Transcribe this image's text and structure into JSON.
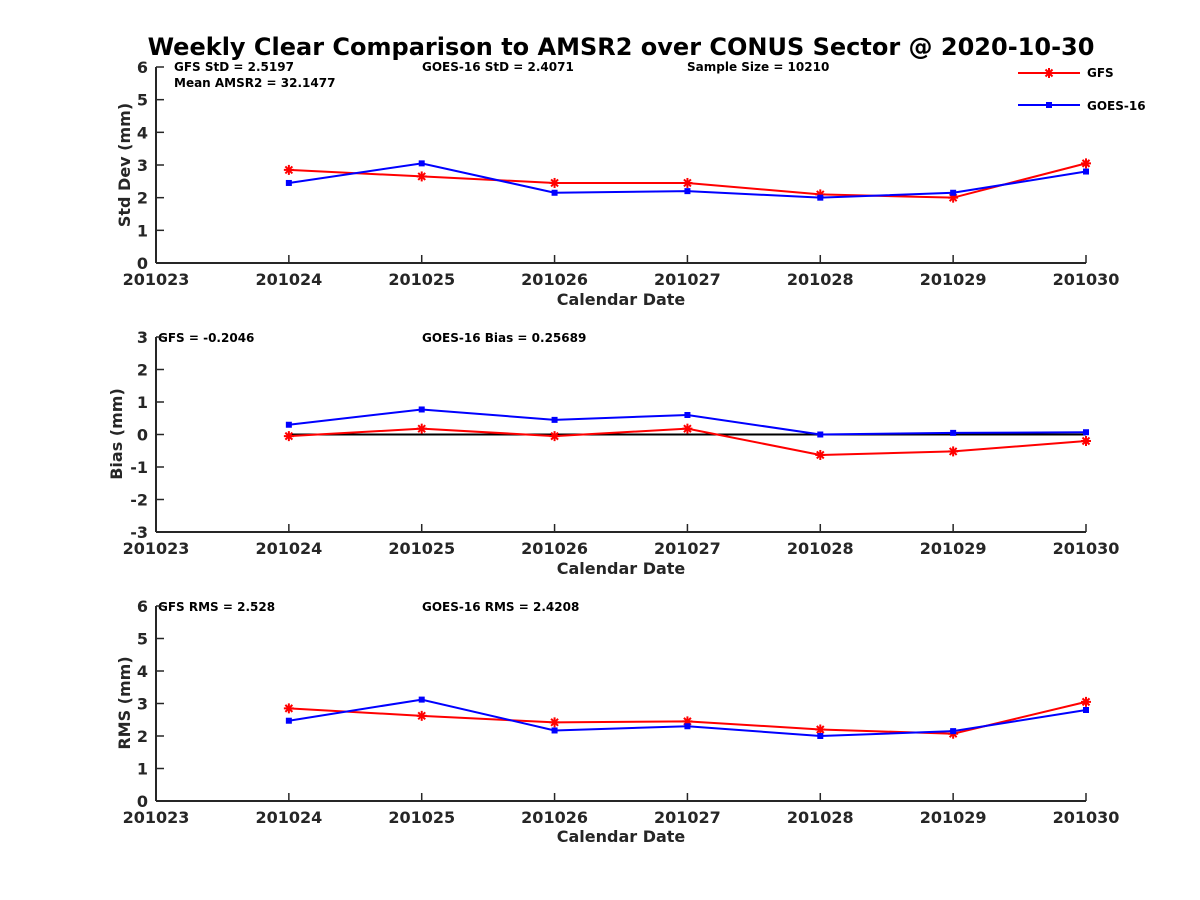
{
  "figure": {
    "title": "Weekly Clear Comparison to AMSR2 over CONUS Sector @ 2020-10-30"
  },
  "legend": {
    "position": "top-right",
    "items": [
      {
        "name": "GFS",
        "color": "#ff0000",
        "marker": "asterisk"
      },
      {
        "name": "GOES-16",
        "color": "#0000ff",
        "marker": "square"
      }
    ]
  },
  "chart_data": [
    {
      "type": "line",
      "id": "std",
      "title": "",
      "xlabel": "Calendar Date",
      "ylabel": "Std Dev (mm)",
      "categories": [
        "201023",
        "201024",
        "201025",
        "201026",
        "201027",
        "201028",
        "201029",
        "201030"
      ],
      "ylim": [
        0,
        6
      ],
      "yticks": [
        "0",
        "1",
        "2",
        "3",
        "4",
        "5",
        "6"
      ],
      "grid": false,
      "series": [
        {
          "name": "GFS",
          "color": "#ff0000",
          "marker": "asterisk",
          "values": [
            null,
            2.85,
            2.65,
            2.45,
            2.45,
            2.1,
            2.0,
            3.05
          ]
        },
        {
          "name": "GOES-16",
          "color": "#0000ff",
          "marker": "square",
          "values": [
            null,
            2.45,
            3.05,
            2.15,
            2.2,
            2.0,
            2.15,
            2.8
          ]
        }
      ],
      "annotations": [
        "GFS StD = 2.5197",
        "Mean AMSR2 = 32.1477",
        "GOES-16 StD = 2.4071",
        "Sample Size = 10210"
      ]
    },
    {
      "type": "line",
      "id": "bias",
      "title": "",
      "xlabel": "Calendar Date",
      "ylabel": "Bias (mm)",
      "categories": [
        "201023",
        "201024",
        "201025",
        "201026",
        "201027",
        "201028",
        "201029",
        "201030"
      ],
      "ylim": [
        -3,
        3
      ],
      "yticks": [
        "-3",
        "-2",
        "-1",
        "0",
        "1",
        "2",
        "3"
      ],
      "grid": false,
      "zero_line": true,
      "series": [
        {
          "name": "GFS",
          "color": "#ff0000",
          "marker": "asterisk",
          "values": [
            null,
            -0.05,
            0.18,
            -0.05,
            0.18,
            -0.63,
            -0.52,
            -0.2
          ]
        },
        {
          "name": "GOES-16",
          "color": "#0000ff",
          "marker": "square",
          "values": [
            null,
            0.3,
            0.77,
            0.45,
            0.6,
            0.0,
            0.05,
            0.07
          ]
        }
      ],
      "annotations": [
        "GFS = -0.2046",
        "GOES-16 Bias  = 0.25689"
      ]
    },
    {
      "type": "line",
      "id": "rms",
      "title": "",
      "xlabel": "Calendar Date",
      "ylabel": "RMS (mm)",
      "categories": [
        "201023",
        "201024",
        "201025",
        "201026",
        "201027",
        "201028",
        "201029",
        "201030"
      ],
      "ylim": [
        0,
        6
      ],
      "yticks": [
        "0",
        "1",
        "2",
        "3",
        "4",
        "5",
        "6"
      ],
      "grid": false,
      "series": [
        {
          "name": "GFS",
          "color": "#ff0000",
          "marker": "asterisk",
          "values": [
            null,
            2.85,
            2.62,
            2.42,
            2.45,
            2.2,
            2.07,
            3.05
          ]
        },
        {
          "name": "GOES-16",
          "color": "#0000ff",
          "marker": "square",
          "values": [
            null,
            2.47,
            3.12,
            2.17,
            2.3,
            2.0,
            2.15,
            2.8
          ]
        }
      ],
      "annotations": [
        "GFS RMS = 2.528",
        "GOES-16 RMS = 2.4208"
      ]
    }
  ]
}
